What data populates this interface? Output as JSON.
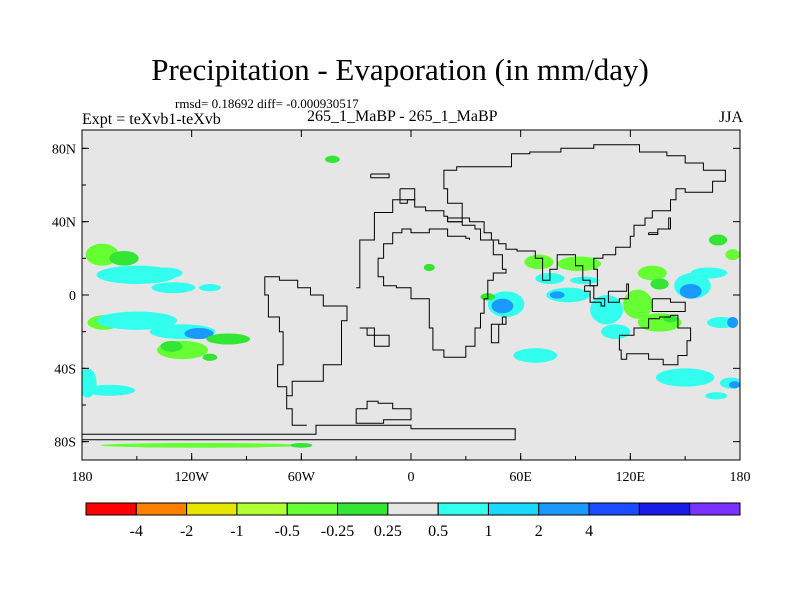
{
  "chart_data": {
    "type": "heatmap",
    "title": "Precipitation - Evaporation (in mm/day)",
    "stats_text": "rmsd= 0.18692 diff= -0.000930517",
    "subtitle": "265_1_MaBP - 265_1_MaBP",
    "experiment": "Expt = teXvb1-teXvb",
    "season": "JJA",
    "x_range": [
      -180,
      180
    ],
    "y_range": [
      -90,
      90
    ],
    "x_ticks": [
      {
        "value": -180,
        "label": "180"
      },
      {
        "value": -120,
        "label": "120W"
      },
      {
        "value": -60,
        "label": "60W"
      },
      {
        "value": 0,
        "label": "0"
      },
      {
        "value": 60,
        "label": "60E"
      },
      {
        "value": 120,
        "label": "120E"
      },
      {
        "value": 180,
        "label": "180"
      }
    ],
    "y_ticks": [
      {
        "value": 80,
        "label": "80N"
      },
      {
        "value": 40,
        "label": "40N"
      },
      {
        "value": 0,
        "label": "0"
      },
      {
        "value": -40,
        "label": "40S"
      },
      {
        "value": -80,
        "label": "80S"
      }
    ],
    "background_color": "#e6e6e6",
    "colorbar": {
      "colors": [
        "#ff0000",
        "#ff8000",
        "#e6e600",
        "#b3ff33",
        "#66ff33",
        "#33e633",
        "#e6e6e6",
        "#33ffee",
        "#1ad9ff",
        "#1a99ff",
        "#1a4dff",
        "#1a1ae6",
        "#7a33ff"
      ],
      "labels": [
        "-4",
        "-2",
        "-1",
        "-0.5",
        "-0.25",
        "0.25",
        "0.5",
        "1",
        "2",
        "4"
      ]
    },
    "coastline": [
      [
        [
          -180,
          -76
        ],
        [
          -62,
          -76
        ],
        [
          -52,
          -71
        ],
        [
          -30,
          -71
        ],
        [
          0,
          -73
        ],
        [
          40,
          -73
        ],
        [
          57,
          -76
        ],
        [
          57,
          -79
        ],
        [
          -180,
          -79
        ]
      ],
      [
        [
          -57,
          -71
        ],
        [
          -65,
          -62
        ],
        [
          -68,
          -55
        ],
        [
          -65,
          -47
        ],
        [
          -48,
          -38
        ],
        [
          -38,
          -14
        ],
        [
          -35,
          -6
        ],
        [
          -48,
          0
        ],
        [
          -55,
          4
        ],
        [
          -62,
          8
        ],
        [
          -72,
          10
        ],
        [
          -80,
          7
        ],
        [
          -80,
          0
        ],
        [
          -78,
          -12
        ],
        [
          -72,
          -20
        ],
        [
          -70,
          -38
        ],
        [
          -73,
          -50
        ],
        [
          -68,
          -55
        ]
      ],
      [
        [
          -30,
          -62
        ],
        [
          -24,
          -58
        ],
        [
          -18,
          -59
        ],
        [
          -10,
          -62
        ],
        [
          0,
          -68
        ],
        [
          -15,
          -70
        ],
        [
          -30,
          -68
        ],
        [
          -30,
          -62
        ]
      ],
      [
        [
          -28,
          -18
        ],
        [
          -24,
          -22
        ],
        [
          -20,
          -28
        ],
        [
          -12,
          -28
        ],
        [
          -12,
          -22
        ],
        [
          -20,
          -18
        ],
        [
          -28,
          -18
        ]
      ],
      [
        [
          -30,
          4
        ],
        [
          -28,
          30
        ],
        [
          -20,
          45
        ],
        [
          -10,
          52
        ],
        [
          0,
          52
        ],
        [
          2,
          48
        ],
        [
          8,
          46
        ],
        [
          18,
          43
        ],
        [
          20,
          40
        ],
        [
          22,
          40
        ],
        [
          28,
          38
        ],
        [
          35,
          36
        ],
        [
          38,
          30
        ],
        [
          45,
          22
        ],
        [
          50,
          14
        ],
        [
          52,
          12
        ],
        [
          45,
          8
        ],
        [
          42,
          -2
        ],
        [
          40,
          -10
        ],
        [
          38,
          -18
        ],
        [
          35,
          -28
        ],
        [
          30,
          -34
        ],
        [
          22,
          -34
        ],
        [
          18,
          -30
        ],
        [
          12,
          -18
        ],
        [
          10,
          -2
        ],
        [
          0,
          4
        ],
        [
          -8,
          5
        ],
        [
          -15,
          10
        ],
        [
          -18,
          20
        ],
        [
          -15,
          28
        ],
        [
          -10,
          34
        ],
        [
          -5,
          36
        ],
        [
          0,
          34
        ],
        [
          10,
          36
        ],
        [
          20,
          32
        ],
        [
          30,
          31
        ],
        [
          32,
          30
        ]
      ],
      [
        [
          20,
          40
        ],
        [
          28,
          50
        ],
        [
          20,
          58
        ],
        [
          18,
          68
        ],
        [
          25,
          70
        ],
        [
          40,
          70
        ],
        [
          55,
          77
        ],
        [
          65,
          78
        ],
        [
          82,
          80
        ],
        [
          100,
          82
        ],
        [
          125,
          78
        ],
        [
          140,
          76
        ],
        [
          150,
          72
        ],
        [
          160,
          68
        ],
        [
          172,
          62
        ],
        [
          165,
          56
        ],
        [
          150,
          58
        ],
        [
          145,
          52
        ],
        [
          142,
          46
        ],
        [
          132,
          42
        ],
        [
          128,
          38
        ],
        [
          122,
          32
        ],
        [
          120,
          26
        ],
        [
          112,
          22
        ],
        [
          105,
          20
        ],
        [
          100,
          14
        ],
        [
          102,
          5
        ],
        [
          98,
          8
        ],
        [
          94,
          16
        ],
        [
          90,
          22
        ],
        [
          80,
          14
        ],
        [
          76,
          8
        ],
        [
          72,
          20
        ],
        [
          68,
          24
        ],
        [
          58,
          25
        ],
        [
          52,
          28
        ],
        [
          48,
          30
        ],
        [
          44,
          34
        ],
        [
          40,
          40
        ],
        [
          32,
          42
        ],
        [
          26,
          42
        ],
        [
          20,
          40
        ]
      ],
      [
        [
          50,
          -12
        ],
        [
          52,
          -16
        ],
        [
          48,
          -26
        ],
        [
          44,
          -24
        ],
        [
          44,
          -16
        ],
        [
          50,
          -12
        ]
      ],
      [
        [
          95,
          5
        ],
        [
          100,
          -2
        ],
        [
          106,
          -6
        ],
        [
          104,
          -4
        ],
        [
          98,
          2
        ],
        [
          95,
          5
        ]
      ],
      [
        [
          108,
          2
        ],
        [
          118,
          6
        ],
        [
          119,
          -2
        ],
        [
          114,
          -4
        ],
        [
          108,
          2
        ]
      ],
      [
        [
          132,
          -2
        ],
        [
          142,
          -4
        ],
        [
          150,
          -9
        ],
        [
          142,
          -9
        ],
        [
          132,
          -2
        ]
      ],
      [
        [
          130,
          34
        ],
        [
          135,
          36
        ],
        [
          141,
          42
        ],
        [
          142,
          36
        ],
        [
          135,
          33
        ],
        [
          130,
          34
        ]
      ],
      [
        [
          114,
          -22
        ],
        [
          122,
          -18
        ],
        [
          130,
          -13
        ],
        [
          136,
          -12
        ],
        [
          142,
          -11
        ],
        [
          146,
          -18
        ],
        [
          153,
          -25
        ],
        [
          151,
          -33
        ],
        [
          146,
          -38
        ],
        [
          138,
          -35
        ],
        [
          130,
          -32
        ],
        [
          118,
          -35
        ],
        [
          115,
          -30
        ],
        [
          114,
          -22
        ]
      ],
      [
        [
          -22,
          66
        ],
        [
          -12,
          66
        ],
        [
          -12,
          64
        ],
        [
          -22,
          64
        ],
        [
          -22,
          66
        ]
      ],
      [
        [
          -6,
          58
        ],
        [
          0,
          58
        ],
        [
          2,
          52
        ],
        [
          -2,
          50
        ],
        [
          -6,
          52
        ],
        [
          -6,
          58
        ]
      ]
    ],
    "features": [
      {
        "lon": -169,
        "lat": 22,
        "rx": 9,
        "ry": 6,
        "color": "#66ff33"
      },
      {
        "lon": -157,
        "lat": 20,
        "rx": 8,
        "ry": 4,
        "color": "#33e633"
      },
      {
        "lon": -150,
        "lat": 11,
        "rx": 22,
        "ry": 5,
        "color": "#33ffee"
      },
      {
        "lon": -135,
        "lat": 12,
        "rx": 10,
        "ry": 3,
        "color": "#33ffee"
      },
      {
        "lon": -130,
        "lat": 4,
        "rx": 12,
        "ry": 3,
        "color": "#33ffee"
      },
      {
        "lon": -110,
        "lat": 4,
        "rx": 6,
        "ry": 2,
        "color": "#33ffee"
      },
      {
        "lon": -168,
        "lat": -15,
        "rx": 9,
        "ry": 4,
        "color": "#66ff33"
      },
      {
        "lon": -150,
        "lat": -14,
        "rx": 22,
        "ry": 5,
        "color": "#33ffee"
      },
      {
        "lon": -125,
        "lat": -20,
        "rx": 18,
        "ry": 4,
        "color": "#33ffee"
      },
      {
        "lon": -116,
        "lat": -21,
        "rx": 8,
        "ry": 3,
        "color": "#1a99ff"
      },
      {
        "lon": -100,
        "lat": -24,
        "rx": 12,
        "ry": 3,
        "color": "#33e633"
      },
      {
        "lon": -125,
        "lat": -30,
        "rx": 14,
        "ry": 5,
        "color": "#66ff33"
      },
      {
        "lon": -131,
        "lat": -28,
        "rx": 6,
        "ry": 3,
        "color": "#33e633"
      },
      {
        "lon": -110,
        "lat": -34,
        "rx": 4,
        "ry": 2,
        "color": "#33e633"
      },
      {
        "lon": -177,
        "lat": -48,
        "rx": 5,
        "ry": 8,
        "color": "#33ffee"
      },
      {
        "lon": -165,
        "lat": -52,
        "rx": 14,
        "ry": 3,
        "color": "#33ffee"
      },
      {
        "lon": -115,
        "lat": -82,
        "rx": 55,
        "ry": 1.3,
        "color": "#66ff33"
      },
      {
        "lon": -60,
        "lat": -82,
        "rx": 6,
        "ry": 1.3,
        "color": "#33e633"
      },
      {
        "lon": -43,
        "lat": 74,
        "rx": 4,
        "ry": 2,
        "color": "#33e633"
      },
      {
        "lon": 10,
        "lat": 15,
        "rx": 3,
        "ry": 2,
        "color": "#33e633"
      },
      {
        "lon": 52,
        "lat": -5,
        "rx": 10,
        "ry": 7,
        "color": "#33ffee"
      },
      {
        "lon": 50,
        "lat": -6,
        "rx": 6,
        "ry": 4,
        "color": "#1a99ff"
      },
      {
        "lon": 42,
        "lat": -1,
        "rx": 4,
        "ry": 2,
        "color": "#33e633"
      },
      {
        "lon": 70,
        "lat": 18,
        "rx": 8,
        "ry": 4,
        "color": "#66ff33"
      },
      {
        "lon": 92,
        "lat": 17,
        "rx": 12,
        "ry": 4,
        "color": "#66ff33"
      },
      {
        "lon": 76,
        "lat": 9,
        "rx": 8,
        "ry": 3,
        "color": "#33ffee"
      },
      {
        "lon": 95,
        "lat": 8,
        "rx": 8,
        "ry": 2,
        "color": "#33ffee"
      },
      {
        "lon": 86,
        "lat": 0,
        "rx": 12,
        "ry": 4,
        "color": "#33ffee"
      },
      {
        "lon": 80,
        "lat": 0,
        "rx": 4,
        "ry": 2,
        "color": "#1a99ff"
      },
      {
        "lon": 107,
        "lat": -8,
        "rx": 9,
        "ry": 8,
        "color": "#33ffee"
      },
      {
        "lon": 124,
        "lat": -5,
        "rx": 8,
        "ry": 8,
        "color": "#66ff33"
      },
      {
        "lon": 136,
        "lat": -15,
        "rx": 12,
        "ry": 5,
        "color": "#66ff33"
      },
      {
        "lon": 112,
        "lat": -20,
        "rx": 8,
        "ry": 4,
        "color": "#33ffee"
      },
      {
        "lon": 68,
        "lat": -33,
        "rx": 12,
        "ry": 4,
        "color": "#33ffee"
      },
      {
        "lon": 142,
        "lat": -13,
        "rx": 4,
        "ry": 2,
        "color": "#33e633"
      },
      {
        "lon": 132,
        "lat": 12,
        "rx": 8,
        "ry": 4,
        "color": "#66ff33"
      },
      {
        "lon": 136,
        "lat": 6,
        "rx": 5,
        "ry": 3,
        "color": "#33e633"
      },
      {
        "lon": 154,
        "lat": 5,
        "rx": 10,
        "ry": 7,
        "color": "#33ffee"
      },
      {
        "lon": 153,
        "lat": 2,
        "rx": 6,
        "ry": 4,
        "color": "#1a99ff"
      },
      {
        "lon": 163,
        "lat": 12,
        "rx": 10,
        "ry": 3,
        "color": "#33ffee"
      },
      {
        "lon": 176,
        "lat": 22,
        "rx": 4,
        "ry": 3,
        "color": "#66ff33"
      },
      {
        "lon": 168,
        "lat": 30,
        "rx": 5,
        "ry": 3,
        "color": "#33e633"
      },
      {
        "lon": 170,
        "lat": -15,
        "rx": 8,
        "ry": 3,
        "color": "#33ffee"
      },
      {
        "lon": 176,
        "lat": -15,
        "rx": 3,
        "ry": 3,
        "color": "#1a99ff"
      },
      {
        "lon": 150,
        "lat": -45,
        "rx": 16,
        "ry": 5,
        "color": "#33ffee"
      },
      {
        "lon": 175,
        "lat": -48,
        "rx": 6,
        "ry": 3,
        "color": "#33ffee"
      },
      {
        "lon": 177,
        "lat": -49,
        "rx": 3,
        "ry": 2,
        "color": "#1a99ff"
      },
      {
        "lon": 167,
        "lat": -55,
        "rx": 6,
        "ry": 2,
        "color": "#33ffee"
      }
    ]
  }
}
